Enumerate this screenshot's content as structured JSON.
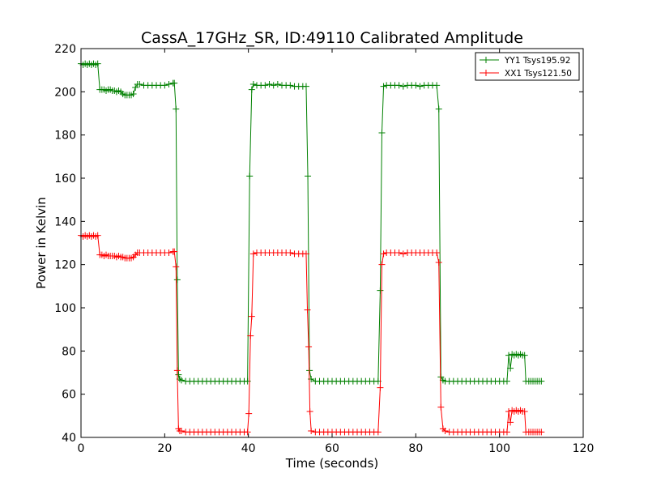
{
  "chart_data": {
    "type": "line",
    "title": "CassA_17GHz_SR, ID:49110 Calibrated Amplitude",
    "xlabel": "Time (seconds)",
    "ylabel": "Power in Kelvin",
    "xlim": [
      0,
      120
    ],
    "ylim": [
      40,
      220
    ],
    "xticks": [
      0,
      20,
      40,
      60,
      80,
      100,
      120
    ],
    "yticks": [
      40,
      60,
      80,
      100,
      120,
      140,
      160,
      180,
      200,
      220
    ],
    "grid": false,
    "legend_position": "top-right",
    "series": [
      {
        "name": "YY1 Tsys195.92",
        "color": "#008000",
        "points": [
          [
            0,
            213
          ],
          [
            0.5,
            212.5
          ],
          [
            1,
            213
          ],
          [
            1.5,
            212.5
          ],
          [
            2,
            213
          ],
          [
            2.5,
            212.5
          ],
          [
            3,
            213
          ],
          [
            3.5,
            212.5
          ],
          [
            4,
            213
          ],
          [
            4.5,
            201
          ],
          [
            5,
            201
          ],
          [
            5.5,
            201
          ],
          [
            6,
            200.5
          ],
          [
            6.5,
            201
          ],
          [
            7,
            201
          ],
          [
            7.5,
            200.5
          ],
          [
            8,
            200.5
          ],
          [
            8.5,
            200
          ],
          [
            9,
            200.5
          ],
          [
            9.5,
            200
          ],
          [
            10,
            199
          ],
          [
            10.5,
            198.5
          ],
          [
            11,
            198.5
          ],
          [
            11.5,
            198.5
          ],
          [
            12,
            198.5
          ],
          [
            12.5,
            199
          ],
          [
            13,
            202
          ],
          [
            13.5,
            203.5
          ],
          [
            14,
            203.5
          ],
          [
            15,
            203
          ],
          [
            16,
            203
          ],
          [
            17,
            203
          ],
          [
            18,
            203
          ],
          [
            19,
            203
          ],
          [
            20,
            203
          ],
          [
            21,
            203.5
          ],
          [
            22,
            204
          ],
          [
            22.3,
            204
          ],
          [
            22.7,
            192
          ],
          [
            23.0,
            113
          ],
          [
            23.3,
            69
          ],
          [
            23.6,
            67
          ],
          [
            24,
            66.5
          ],
          [
            25,
            66
          ],
          [
            26,
            66
          ],
          [
            27,
            66
          ],
          [
            28,
            66
          ],
          [
            29,
            66
          ],
          [
            30,
            66
          ],
          [
            31,
            66
          ],
          [
            32,
            66
          ],
          [
            33,
            66
          ],
          [
            34,
            66
          ],
          [
            35,
            66
          ],
          [
            36,
            66
          ],
          [
            37,
            66
          ],
          [
            38,
            66
          ],
          [
            39,
            66
          ],
          [
            39.8,
            66
          ],
          [
            40.3,
            161
          ],
          [
            40.8,
            201
          ],
          [
            41.2,
            203.5
          ],
          [
            42,
            203
          ],
          [
            43,
            203
          ],
          [
            44,
            203
          ],
          [
            45,
            203.5
          ],
          [
            46,
            203
          ],
          [
            47,
            203.5
          ],
          [
            48,
            203
          ],
          [
            49,
            203
          ],
          [
            50,
            203
          ],
          [
            51,
            202.5
          ],
          [
            52,
            202.5
          ],
          [
            53,
            202.5
          ],
          [
            53.8,
            202.5
          ],
          [
            54.2,
            161
          ],
          [
            54.6,
            71
          ],
          [
            55,
            67
          ],
          [
            56,
            66
          ],
          [
            57,
            66
          ],
          [
            58,
            66
          ],
          [
            59,
            66
          ],
          [
            60,
            66
          ],
          [
            61,
            66
          ],
          [
            62,
            66
          ],
          [
            63,
            66
          ],
          [
            64,
            66
          ],
          [
            65,
            66
          ],
          [
            66,
            66
          ],
          [
            67,
            66
          ],
          [
            68,
            66
          ],
          [
            69,
            66
          ],
          [
            70,
            66
          ],
          [
            71,
            66
          ],
          [
            71.5,
            108
          ],
          [
            71.9,
            181
          ],
          [
            72.3,
            202.5
          ],
          [
            73,
            203
          ],
          [
            74,
            203
          ],
          [
            75,
            203
          ],
          [
            76,
            203
          ],
          [
            77,
            202.5
          ],
          [
            78,
            203
          ],
          [
            79,
            203
          ],
          [
            80,
            203
          ],
          [
            81,
            202.5
          ],
          [
            82,
            203
          ],
          [
            83,
            203
          ],
          [
            84,
            203
          ],
          [
            85,
            203
          ],
          [
            85.5,
            192
          ],
          [
            86,
            68
          ],
          [
            86.5,
            66.5
          ],
          [
            87,
            66
          ],
          [
            88,
            66
          ],
          [
            89,
            66
          ],
          [
            90,
            66
          ],
          [
            91,
            66
          ],
          [
            92,
            66
          ],
          [
            93,
            66
          ],
          [
            94,
            66
          ],
          [
            95,
            66
          ],
          [
            96,
            66
          ],
          [
            97,
            66
          ],
          [
            98,
            66
          ],
          [
            99,
            66
          ],
          [
            100,
            66
          ],
          [
            101,
            66
          ],
          [
            101.8,
            66
          ],
          [
            102.2,
            78
          ],
          [
            102.6,
            72
          ],
          [
            103,
            78.5
          ],
          [
            103.5,
            78
          ],
          [
            104,
            78.5
          ],
          [
            104.5,
            78
          ],
          [
            105,
            78.5
          ],
          [
            105.5,
            78
          ],
          [
            106,
            78
          ],
          [
            106.3,
            66
          ],
          [
            107,
            66
          ],
          [
            107.5,
            66
          ],
          [
            108,
            66
          ],
          [
            108.5,
            66
          ],
          [
            109,
            66
          ],
          [
            109.5,
            66
          ],
          [
            110,
            66
          ]
        ]
      },
      {
        "name": "XX1 Tsys121.50",
        "color": "#ff0000",
        "points": [
          [
            0,
            133.5
          ],
          [
            0.5,
            133
          ],
          [
            1,
            133.5
          ],
          [
            1.5,
            133
          ],
          [
            2,
            133.5
          ],
          [
            2.5,
            133
          ],
          [
            3,
            133.5
          ],
          [
            3.5,
            133
          ],
          [
            4,
            133.5
          ],
          [
            4.5,
            124.5
          ],
          [
            5,
            124.5
          ],
          [
            5.5,
            124
          ],
          [
            6,
            124.5
          ],
          [
            6.5,
            124
          ],
          [
            7,
            124
          ],
          [
            7.5,
            124
          ],
          [
            8,
            124
          ],
          [
            8.5,
            123.5
          ],
          [
            9,
            124
          ],
          [
            9.5,
            123.5
          ],
          [
            10,
            123.5
          ],
          [
            10.5,
            123
          ],
          [
            11,
            123
          ],
          [
            11.5,
            123
          ],
          [
            12,
            123
          ],
          [
            12.5,
            123.5
          ],
          [
            13,
            124.5
          ],
          [
            13.5,
            125.5
          ],
          [
            14,
            125.5
          ],
          [
            15,
            125.5
          ],
          [
            16,
            125.5
          ],
          [
            17,
            125.5
          ],
          [
            18,
            125.5
          ],
          [
            19,
            125.5
          ],
          [
            20,
            125.5
          ],
          [
            21,
            125.5
          ],
          [
            22,
            126
          ],
          [
            22.3,
            126
          ],
          [
            22.7,
            119
          ],
          [
            23.0,
            71
          ],
          [
            23.3,
            44
          ],
          [
            23.6,
            43
          ],
          [
            24,
            43
          ],
          [
            25,
            42.5
          ],
          [
            26,
            42.5
          ],
          [
            27,
            42.5
          ],
          [
            28,
            42.5
          ],
          [
            29,
            42.5
          ],
          [
            30,
            42.5
          ],
          [
            31,
            42.5
          ],
          [
            32,
            42.5
          ],
          [
            33,
            42.5
          ],
          [
            34,
            42.5
          ],
          [
            35,
            42.5
          ],
          [
            36,
            42.5
          ],
          [
            37,
            42.5
          ],
          [
            38,
            42.5
          ],
          [
            39,
            42.5
          ],
          [
            39.8,
            42.5
          ],
          [
            40.1,
            51
          ],
          [
            40.5,
            87
          ],
          [
            40.8,
            96
          ],
          [
            41.2,
            125
          ],
          [
            42,
            125.5
          ],
          [
            43,
            125.5
          ],
          [
            44,
            125.5
          ],
          [
            45,
            125.5
          ],
          [
            46,
            125.5
          ],
          [
            47,
            125.5
          ],
          [
            48,
            125.5
          ],
          [
            49,
            125.5
          ],
          [
            50,
            125.5
          ],
          [
            51,
            125
          ],
          [
            52,
            125
          ],
          [
            53,
            125
          ],
          [
            53.8,
            125
          ],
          [
            54.1,
            99
          ],
          [
            54.4,
            82
          ],
          [
            54.7,
            52
          ],
          [
            55,
            43
          ],
          [
            56,
            42.5
          ],
          [
            57,
            42.5
          ],
          [
            58,
            42.5
          ],
          [
            59,
            42.5
          ],
          [
            60,
            42.5
          ],
          [
            61,
            42.5
          ],
          [
            62,
            42.5
          ],
          [
            63,
            42.5
          ],
          [
            64,
            42.5
          ],
          [
            65,
            42.5
          ],
          [
            66,
            42.5
          ],
          [
            67,
            42.5
          ],
          [
            68,
            42.5
          ],
          [
            69,
            42.5
          ],
          [
            70,
            42.5
          ],
          [
            71,
            42.5
          ],
          [
            71.5,
            63
          ],
          [
            71.9,
            120
          ],
          [
            72.3,
            125
          ],
          [
            73,
            125.5
          ],
          [
            74,
            125.5
          ],
          [
            75,
            125.5
          ],
          [
            76,
            125.5
          ],
          [
            77,
            125
          ],
          [
            78,
            125.5
          ],
          [
            79,
            125.5
          ],
          [
            80,
            125.5
          ],
          [
            81,
            125.5
          ],
          [
            82,
            125.5
          ],
          [
            83,
            125.5
          ],
          [
            84,
            125.5
          ],
          [
            85,
            125.5
          ],
          [
            85.5,
            121
          ],
          [
            86,
            54
          ],
          [
            86.5,
            44
          ],
          [
            87,
            43
          ],
          [
            88,
            42.5
          ],
          [
            89,
            42.5
          ],
          [
            90,
            42.5
          ],
          [
            91,
            42.5
          ],
          [
            92,
            42.5
          ],
          [
            93,
            42.5
          ],
          [
            94,
            42.5
          ],
          [
            95,
            42.5
          ],
          [
            96,
            42.5
          ],
          [
            97,
            42.5
          ],
          [
            98,
            42.5
          ],
          [
            99,
            42.5
          ],
          [
            100,
            42.5
          ],
          [
            101,
            42.5
          ],
          [
            101.8,
            42.5
          ],
          [
            102.2,
            52
          ],
          [
            102.6,
            47
          ],
          [
            103,
            52.5
          ],
          [
            103.5,
            52
          ],
          [
            104,
            52.5
          ],
          [
            104.5,
            52
          ],
          [
            105,
            52.5
          ],
          [
            105.5,
            52
          ],
          [
            106,
            52
          ],
          [
            106.3,
            42.5
          ],
          [
            107,
            42.5
          ],
          [
            107.5,
            42.5
          ],
          [
            108,
            42.5
          ],
          [
            108.5,
            42.5
          ],
          [
            109,
            42.5
          ],
          [
            109.5,
            42.5
          ],
          [
            110,
            42.5
          ]
        ]
      }
    ]
  }
}
